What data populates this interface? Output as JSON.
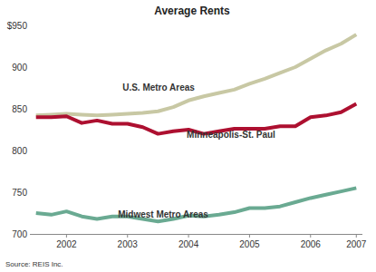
{
  "chart_data": {
    "type": "line",
    "title": "Average Rents",
    "source": "Source: REIS Inc.",
    "x": [
      2002,
      2002.25,
      2002.5,
      2002.75,
      2003,
      2003.25,
      2003.5,
      2003.75,
      2004,
      2004.25,
      2004.5,
      2004.75,
      2005,
      2005.25,
      2005.5,
      2005.75,
      2006,
      2006.25,
      2006.5,
      2006.75,
      2007,
      2007.25
    ],
    "xlim": [
      2001.9,
      2007.35
    ],
    "xticks": [
      {
        "value": 2002.5,
        "label": "2002"
      },
      {
        "value": 2003.5,
        "label": "2003"
      },
      {
        "value": 2004.5,
        "label": "2004"
      },
      {
        "value": 2005.5,
        "label": "2005"
      },
      {
        "value": 2006.5,
        "label": "2006"
      },
      {
        "value": 2007.25,
        "label": "2007"
      }
    ],
    "ylim": [
      700,
      950
    ],
    "yticks": [
      700,
      750,
      800,
      850,
      900,
      {
        "value": 950,
        "label": "$950"
      }
    ],
    "grid": false,
    "series": [
      {
        "name": "U.S. Metro Areas",
        "color": "#c8c8a4",
        "values": [
          842,
          843,
          844,
          843,
          842,
          843,
          844,
          845,
          847,
          852,
          860,
          865,
          869,
          873,
          880,
          886,
          893,
          900,
          910,
          920,
          928,
          939
        ]
      },
      {
        "name": "Minneapolis-St. Paul",
        "color": "#ad1030",
        "values": [
          840,
          840,
          841,
          833,
          836,
          832,
          832,
          828,
          820,
          823,
          825,
          820,
          823,
          826,
          826,
          826,
          829,
          829,
          840,
          842,
          846,
          856
        ]
      },
      {
        "name": "Midwest Metro Areas",
        "color": "#6aaa92",
        "values": [
          725,
          723,
          727,
          721,
          718,
          721,
          721,
          718,
          715,
          718,
          722,
          721,
          723,
          726,
          731,
          731,
          733,
          738,
          743,
          747,
          751,
          755
        ]
      }
    ]
  }
}
